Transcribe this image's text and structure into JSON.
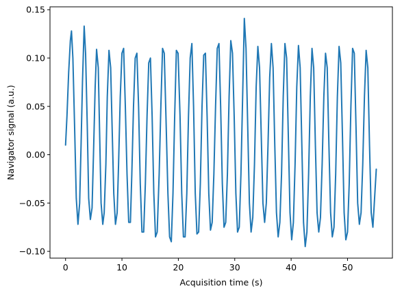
{
  "chart_data": {
    "type": "line",
    "title": "",
    "xlabel": "Acquisition time (s)",
    "ylabel": "Navigator signal (a.u.)",
    "xlim": [
      -2.76,
      57.96
    ],
    "ylim": [
      -0.107,
      0.153
    ],
    "xticks": [
      0,
      10,
      20,
      30,
      40,
      50
    ],
    "yticks": [
      -0.1,
      -0.05,
      0.0,
      0.05,
      0.1,
      0.15
    ],
    "xtick_labels": [
      "0",
      "10",
      "20",
      "30",
      "40",
      "50"
    ],
    "ytick_labels": [
      "−0.10",
      "−0.05",
      "0.00",
      "0.05",
      "0.10",
      "0.15"
    ],
    "grid": false,
    "legend": "none",
    "line_color": "#1f77b4",
    "series": [
      {
        "x": [
          0.0,
          0.25,
          0.55,
          0.85,
          1.05,
          1.3,
          1.6,
          1.9,
          2.2,
          2.5,
          2.75,
          3.0,
          3.3,
          3.55,
          3.85,
          4.1,
          4.4,
          4.7,
          4.95,
          5.25,
          5.5,
          5.8,
          6.05,
          6.3,
          6.6,
          6.85,
          7.15,
          7.4,
          7.7,
          8.0,
          8.25,
          8.55,
          8.85,
          9.15,
          9.4,
          9.7,
          10.0,
          10.3,
          10.6,
          10.9,
          11.2,
          11.5,
          11.75,
          12.05,
          12.35,
          12.65,
          12.95,
          13.25,
          13.55,
          13.85,
          14.15,
          14.45,
          14.75,
          15.05,
          15.35,
          15.65,
          15.95,
          16.25,
          16.6,
          16.9,
          17.2,
          17.5,
          17.8,
          18.15,
          18.45,
          18.75,
          19.05,
          19.35,
          19.65,
          19.95,
          20.3,
          20.6,
          20.9,
          21.2,
          21.5,
          21.8,
          22.1,
          22.4,
          22.7,
          23.0,
          23.3,
          23.6,
          23.9,
          24.2,
          24.5,
          24.8,
          25.1,
          25.4,
          25.7,
          26.0,
          26.3,
          26.6,
          26.9,
          27.2,
          27.5,
          27.8,
          28.1,
          28.4,
          28.7,
          29.0,
          29.3,
          29.6,
          29.9,
          30.2,
          30.5,
          30.8,
          31.1,
          31.4,
          31.7,
          32.0,
          32.3,
          32.6,
          32.9,
          33.2,
          33.5,
          33.8,
          34.1,
          34.4,
          34.7,
          35.0,
          35.3,
          35.6,
          35.9,
          36.2,
          36.5,
          36.8,
          37.1,
          37.4,
          37.7,
          38.0,
          38.3,
          38.6,
          38.9,
          39.2,
          39.5,
          39.8,
          40.1,
          40.4,
          40.7,
          41.0,
          41.3,
          41.6,
          41.9,
          42.2,
          42.5,
          42.8,
          43.1,
          43.4,
          43.7,
          44.0,
          44.3,
          44.6,
          44.9,
          45.2,
          45.5,
          45.8,
          46.1,
          46.4,
          46.7,
          47.0,
          47.3,
          47.6,
          47.9,
          48.2,
          48.5,
          48.8,
          49.1,
          49.4,
          49.7,
          50.0,
          50.3,
          50.6,
          50.9,
          51.2,
          51.5,
          51.8,
          52.1,
          52.4,
          52.7,
          53.0,
          53.3,
          53.6,
          53.9,
          54.2,
          54.5,
          54.8,
          55.1
        ],
        "y": [
          0.01,
          0.04,
          0.085,
          0.118,
          0.128,
          0.1,
          0.03,
          -0.045,
          -0.072,
          -0.05,
          0.01,
          0.075,
          0.133,
          0.105,
          0.03,
          -0.045,
          -0.067,
          -0.055,
          0.0,
          0.07,
          0.109,
          0.09,
          0.02,
          -0.05,
          -0.072,
          -0.06,
          -0.01,
          0.06,
          0.108,
          0.09,
          0.03,
          -0.04,
          -0.072,
          -0.06,
          -0.01,
          0.06,
          0.105,
          0.11,
          0.05,
          -0.02,
          -0.07,
          -0.07,
          -0.02,
          0.05,
          0.1,
          0.105,
          0.05,
          -0.03,
          -0.08,
          -0.08,
          -0.03,
          0.04,
          0.095,
          0.1,
          0.04,
          -0.04,
          -0.085,
          -0.08,
          -0.02,
          0.05,
          0.11,
          0.105,
          0.04,
          -0.04,
          -0.085,
          -0.09,
          -0.04,
          0.04,
          0.108,
          0.105,
          0.04,
          -0.04,
          -0.085,
          -0.085,
          -0.04,
          0.04,
          0.1,
          0.115,
          0.05,
          -0.04,
          -0.082,
          -0.08,
          -0.03,
          0.05,
          0.103,
          0.105,
          0.04,
          -0.04,
          -0.078,
          -0.07,
          -0.02,
          0.05,
          0.11,
          0.115,
          0.05,
          -0.03,
          -0.075,
          -0.07,
          -0.02,
          0.06,
          0.118,
          0.105,
          0.04,
          -0.04,
          -0.08,
          -0.075,
          -0.02,
          0.06,
          0.141,
          0.11,
          0.03,
          -0.05,
          -0.08,
          -0.065,
          -0.01,
          0.07,
          0.112,
          0.09,
          0.02,
          -0.05,
          -0.07,
          -0.05,
          0.01,
          0.08,
          0.115,
          0.09,
          0.01,
          -0.06,
          -0.085,
          -0.07,
          -0.02,
          0.06,
          0.115,
          0.1,
          0.02,
          -0.06,
          -0.088,
          -0.07,
          -0.01,
          0.07,
          0.113,
          0.09,
          0.01,
          -0.07,
          -0.095,
          -0.08,
          -0.02,
          0.06,
          0.11,
          0.09,
          0.01,
          -0.06,
          -0.08,
          -0.065,
          -0.01,
          0.06,
          0.105,
          0.09,
          0.01,
          -0.06,
          -0.085,
          -0.075,
          -0.02,
          0.06,
          0.112,
          0.095,
          0.02,
          -0.06,
          -0.088,
          -0.08,
          -0.03,
          0.05,
          0.11,
          0.105,
          0.03,
          -0.05,
          -0.072,
          -0.06,
          -0.01,
          0.06,
          0.108,
          0.09,
          0.01,
          -0.06,
          -0.075,
          -0.045,
          -0.015
        ]
      }
    ]
  }
}
